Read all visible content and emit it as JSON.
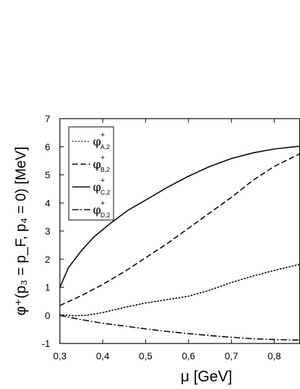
{
  "chart_data": {
    "type": "line",
    "xlabel": "μ [GeV]",
    "ylabel": "φ⁺(p₃ = p_F, p₄ = 0) [MeV]",
    "xlim": [
      0.3,
      0.86
    ],
    "ylim": [
      -1,
      7
    ],
    "x_ticks": [
      0.3,
      0.4,
      0.5,
      0.6,
      0.7,
      0.8
    ],
    "x_tick_labels": [
      "0,3",
      "0,4",
      "0,5",
      "0,6",
      "0,7",
      "0,8"
    ],
    "y_ticks": [
      -1,
      0,
      1,
      2,
      3,
      4,
      5,
      6,
      7
    ],
    "y_tick_labels": [
      "-1",
      "0",
      "1",
      "2",
      "3",
      "4",
      "5",
      "6",
      "7"
    ],
    "grid": false,
    "legend_position": "top-left",
    "series": [
      {
        "name": "φ⁺ A,2",
        "sym": "φ",
        "sup": "+",
        "sub": "A,2",
        "style": "dotted",
        "x": [
          0.3,
          0.33,
          0.36,
          0.4,
          0.45,
          0.5,
          0.55,
          0.6,
          0.65,
          0.7,
          0.75,
          0.8,
          0.86
        ],
        "y": [
          0.02,
          -0.01,
          0.0,
          0.1,
          0.28,
          0.44,
          0.56,
          0.68,
          0.9,
          1.17,
          1.4,
          1.6,
          1.82
        ]
      },
      {
        "name": "φ⁺ B,2",
        "sym": "φ",
        "sup": "+",
        "sub": "B,2",
        "style": "dashed",
        "x": [
          0.3,
          0.35,
          0.4,
          0.45,
          0.5,
          0.55,
          0.6,
          0.65,
          0.7,
          0.75,
          0.8,
          0.86
        ],
        "y": [
          0.35,
          0.7,
          1.1,
          1.55,
          2.05,
          2.55,
          3.1,
          3.65,
          4.2,
          4.8,
          5.3,
          5.75
        ]
      },
      {
        "name": "φ⁺ C,2",
        "sym": "φ",
        "sup": "+",
        "sub": "C,2",
        "style": "solid",
        "x": [
          0.3,
          0.32,
          0.35,
          0.38,
          0.42,
          0.46,
          0.5,
          0.55,
          0.6,
          0.65,
          0.7,
          0.75,
          0.8,
          0.86
        ],
        "y": [
          1.0,
          1.7,
          2.3,
          2.8,
          3.3,
          3.75,
          4.1,
          4.55,
          4.95,
          5.3,
          5.58,
          5.78,
          5.92,
          6.02
        ]
      },
      {
        "name": "φ⁺ D,2",
        "sym": "φ",
        "sup": "+",
        "sub": "D,2",
        "style": "dashdot",
        "x": [
          0.3,
          0.35,
          0.4,
          0.45,
          0.5,
          0.55,
          0.6,
          0.65,
          0.7,
          0.75,
          0.8,
          0.86
        ],
        "y": [
          0.0,
          -0.15,
          -0.28,
          -0.38,
          -0.48,
          -0.57,
          -0.65,
          -0.72,
          -0.78,
          -0.83,
          -0.86,
          -0.88
        ]
      }
    ]
  }
}
